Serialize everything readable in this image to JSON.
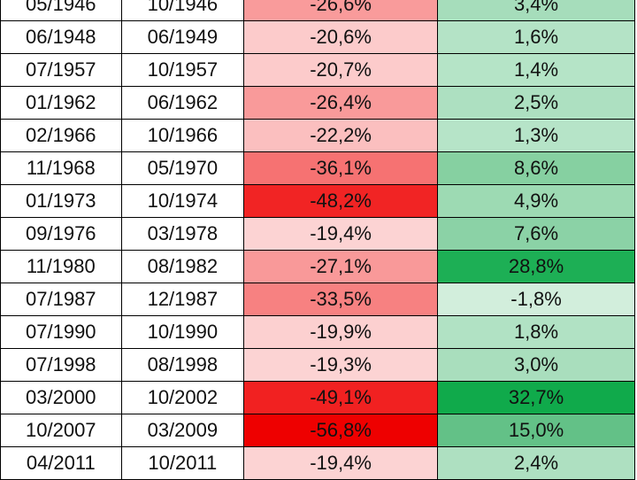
{
  "table": {
    "rows": [
      {
        "start": "05/1946",
        "end": "10/1946",
        "decline": "-26,6%",
        "change": "3,4%",
        "decline_color": "#F99B9B",
        "change_color": "#A6DDBB"
      },
      {
        "start": "06/1948",
        "end": "06/1949",
        "decline": "-20,6%",
        "change": "1,6%",
        "decline_color": "#FCCBCB",
        "change_color": "#B4E3C6"
      },
      {
        "start": "07/1957",
        "end": "10/1957",
        "decline": "-20,7%",
        "change": "1,4%",
        "decline_color": "#FCCBCB",
        "change_color": "#B5E4C7"
      },
      {
        "start": "01/1962",
        "end": "06/1962",
        "decline": "-26,4%",
        "change": "2,5%",
        "decline_color": "#F99A9A",
        "change_color": "#ADE0C1"
      },
      {
        "start": "02/1966",
        "end": "10/1966",
        "decline": "-22,2%",
        "change": "1,3%",
        "decline_color": "#FBBFBF",
        "change_color": "#B6E4C8"
      },
      {
        "start": "11/1968",
        "end": "05/1970",
        "decline": "-36,1%",
        "change": "8,6%",
        "decline_color": "#F67272",
        "change_color": "#86D0A1"
      },
      {
        "start": "01/1973",
        "end": "10/1974",
        "decline": "-48,2%",
        "change": "4,9%",
        "decline_color": "#F12424",
        "change_color": "#9DDAB3"
      },
      {
        "start": "09/1976",
        "end": "03/1978",
        "decline": "-19,4%",
        "change": "7,6%",
        "decline_color": "#FCD3D3",
        "change_color": "#8BD2A6"
      },
      {
        "start": "11/1980",
        "end": "08/1982",
        "decline": "-27,1%",
        "change": "28,8%",
        "decline_color": "#F99999",
        "change_color": "#1DAF55"
      },
      {
        "start": "07/1987",
        "end": "12/1987",
        "decline": "-33,5%",
        "change": "-1,8%",
        "decline_color": "#F78181",
        "change_color": "#D2EEDC"
      },
      {
        "start": "07/1990",
        "end": "10/1990",
        "decline": "-19,9%",
        "change": "1,8%",
        "decline_color": "#FCD0D0",
        "change_color": "#B1E2C4"
      },
      {
        "start": "07/1998",
        "end": "08/1998",
        "decline": "-19,3%",
        "change": "3,0%",
        "decline_color": "#FCD3D3",
        "change_color": "#A9DEBD"
      },
      {
        "start": "03/2000",
        "end": "10/2002",
        "decline": "-49,1%",
        "change": "32,7%",
        "decline_color": "#F12121",
        "change_color": "#10AA4B"
      },
      {
        "start": "10/2007",
        "end": "03/2009",
        "decline": "-56,8%",
        "change": "15,0%",
        "decline_color": "#EE0000",
        "change_color": "#63C187"
      },
      {
        "start": "04/2011",
        "end": "10/2011",
        "decline": "-19,4%",
        "change": "2,4%",
        "decline_color": "#FCD3D3",
        "change_color": "#AEE0C1"
      }
    ]
  }
}
